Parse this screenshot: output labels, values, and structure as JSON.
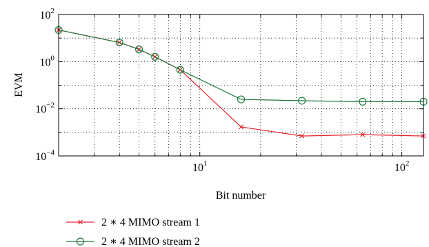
{
  "chart_data": {
    "type": "line",
    "xlabel": "Bit number",
    "ylabel": "EVM",
    "xscale": "log",
    "yscale": "log",
    "xlim": [
      2,
      128
    ],
    "ylim": [
      0.0001,
      100
    ],
    "grid": true,
    "legend_position": "below",
    "x_ticks": [
      {
        "base": "10",
        "exp": "1",
        "value": 10
      },
      {
        "base": "10",
        "exp": "2",
        "value": 100
      }
    ],
    "y_ticks": [
      {
        "base": "10",
        "exp": "−4",
        "value": 0.0001
      },
      {
        "base": "10",
        "exp": "−2",
        "value": 0.01
      },
      {
        "base": "10",
        "exp": "0",
        "value": 1
      },
      {
        "base": "10",
        "exp": "2",
        "value": 100
      }
    ],
    "series": [
      {
        "name": "2 ∗ 4 MIMO stream 1",
        "color": "#e8232a",
        "marker": "x",
        "x": [
          2,
          4,
          5,
          6,
          8,
          16,
          32,
          64,
          128
        ],
        "y": [
          22,
          6.5,
          3.3,
          1.6,
          0.45,
          0.0017,
          0.0007,
          0.0008,
          0.0007
        ]
      },
      {
        "name": "2 ∗ 4 MIMO stream 2",
        "color": "#1e7a3c",
        "marker": "circle",
        "x": [
          2,
          4,
          5,
          6,
          8,
          16,
          32,
          64,
          128
        ],
        "y": [
          22,
          6.5,
          3.3,
          1.6,
          0.45,
          0.025,
          0.022,
          0.02,
          0.02
        ]
      }
    ]
  }
}
